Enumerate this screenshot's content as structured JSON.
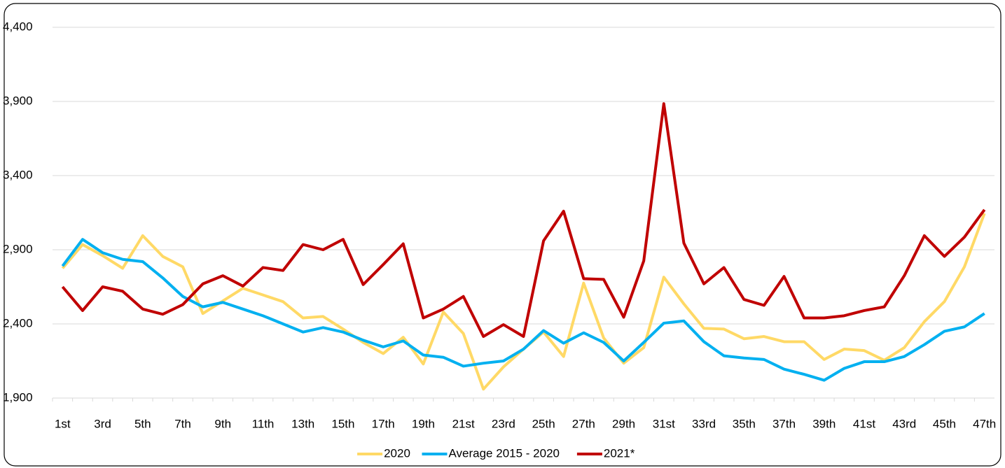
{
  "chart_data": {
    "type": "line",
    "categories": [
      "1st",
      null,
      "3rd",
      null,
      "5th",
      null,
      "7th",
      null,
      "9th",
      null,
      "11th",
      null,
      "13th",
      null,
      "15th",
      null,
      "17th",
      null,
      "19th",
      null,
      "21st",
      null,
      "23rd",
      null,
      "25th",
      null,
      "27th",
      null,
      "29th",
      null,
      "31st",
      null,
      "33rd",
      null,
      "35th",
      null,
      "37th",
      null,
      "39th",
      null,
      "41st",
      null,
      "43rd",
      null,
      "45th",
      null,
      "47th"
    ],
    "series": [
      {
        "name": "2020",
        "color": "#ffd966",
        "values": [
          2775,
          2935,
          2860,
          2775,
          2995,
          2855,
          2785,
          2470,
          2555,
          2640,
          2595,
          2550,
          2440,
          2450,
          2365,
          2275,
          2200,
          2310,
          2130,
          2480,
          2335,
          1960,
          2110,
          2230,
          2345,
          2180,
          2675,
          2305,
          2135,
          2240,
          2715,
          2535,
          2370,
          2365,
          2300,
          2315,
          2280,
          2280,
          2160,
          2230,
          2220,
          2155,
          2240,
          2415,
          2550,
          2785,
          3145
        ]
      },
      {
        "name": "Average 2015 - 2020",
        "color": "#00b0f0",
        "values": [
          2790,
          2970,
          2880,
          2835,
          2820,
          2710,
          2585,
          2515,
          2545,
          2500,
          2455,
          2400,
          2345,
          2375,
          2345,
          2290,
          2245,
          2285,
          2190,
          2175,
          2115,
          2135,
          2150,
          2230,
          2355,
          2270,
          2340,
          2275,
          2150,
          2275,
          2405,
          2420,
          2280,
          2185,
          2170,
          2160,
          2095,
          2060,
          2020,
          2100,
          2145,
          2145,
          2180,
          2260,
          2350,
          2380,
          2470
        ]
      },
      {
        "name": "2021*",
        "color": "#c00000",
        "values": [
          2650,
          2490,
          2650,
          2620,
          2500,
          2465,
          2530,
          2670,
          2725,
          2655,
          2780,
          2760,
          2935,
          2900,
          2970,
          2665,
          2800,
          2940,
          2440,
          2500,
          2585,
          2315,
          2395,
          2315,
          2960,
          3160,
          2705,
          2700,
          2445,
          2825,
          3885,
          2945,
          2670,
          2780,
          2565,
          2525,
          2720,
          2440,
          2440,
          2455,
          2490,
          2515,
          2725,
          2995,
          2855,
          2985,
          3170
        ]
      }
    ],
    "ylim": [
      1900,
      4400
    ],
    "yticks": [
      {
        "value": 1900,
        "label": "1,900"
      },
      {
        "value": 2400,
        "label": "2,400"
      },
      {
        "value": 2900,
        "label": "2,900"
      },
      {
        "value": 3400,
        "label": "3,400"
      },
      {
        "value": 3900,
        "label": "3,900"
      },
      {
        "value": 4400,
        "label": "4,400"
      }
    ],
    "grid": true,
    "legend": "bottom"
  }
}
